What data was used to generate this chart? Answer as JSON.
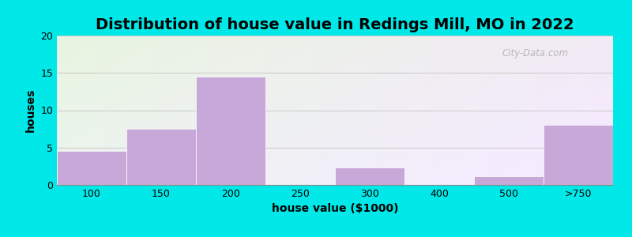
{
  "title": "Distribution of house value in Redings Mill, MO in 2022",
  "xlabel": "house value ($1000)",
  "ylabel": "houses",
  "categories": [
    "100",
    "150",
    "200",
    "250",
    "300",
    "400",
    "500",
    ">750"
  ],
  "values": [
    4.5,
    7.5,
    14.5,
    0,
    2.3,
    0,
    1.2,
    8.0
  ],
  "bar_color": "#C8A8D8",
  "bar_edgecolor": "#C8A8D8",
  "ylim": [
    0,
    20
  ],
  "yticks": [
    0,
    5,
    10,
    15,
    20
  ],
  "bg_outer": "#00E8E8",
  "bg_gradient_top_left": "#E8F5E0",
  "bg_gradient_bottom_right": "#E8EEF8",
  "grid_color": "#C8C8C8",
  "title_fontsize": 14,
  "axis_label_fontsize": 10,
  "tick_fontsize": 9,
  "watermark_text": "City-Data.com"
}
